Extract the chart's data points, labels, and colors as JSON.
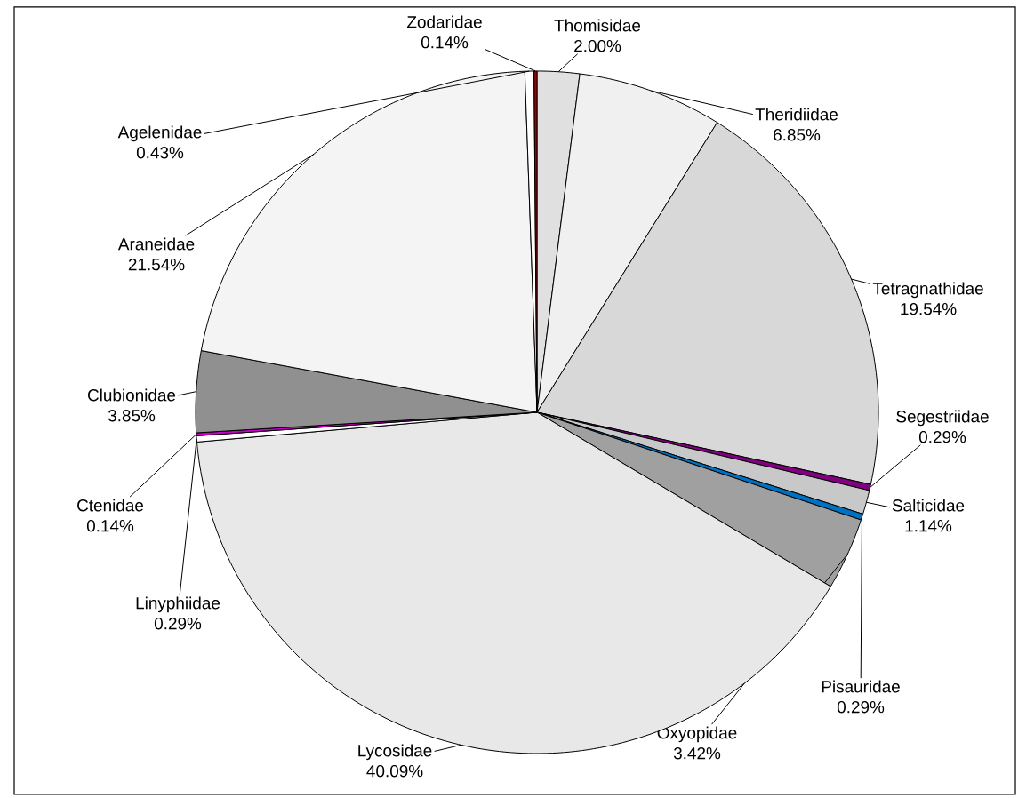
{
  "chart_data": {
    "type": "pie",
    "categories": [
      "Thomisidae",
      "Theridiidae",
      "Tetragnathidae",
      "Segestriidae",
      "Salticidae",
      "Pisauridae",
      "Oxyopidae",
      "Lycosidae",
      "Linyphiidae",
      "Ctenidae",
      "Clubionidae",
      "Araneidae",
      "Agelenidae",
      "Zodaridae"
    ],
    "values": [
      2.0,
      6.85,
      19.54,
      0.29,
      1.14,
      0.29,
      3.42,
      40.09,
      0.29,
      0.14,
      3.85,
      21.54,
      0.43,
      0.14
    ],
    "value_labels": [
      "2.00%",
      "6.85%",
      "19.54%",
      "0.29%",
      "1.14%",
      "0.29%",
      "3.42%",
      "40.09%",
      "0.29%",
      "0.14%",
      "3.85%",
      "21.54%",
      "0.43%",
      "0.14%"
    ],
    "colors": [
      "#e0e0e0",
      "#f0f0f0",
      "#d8d8d8",
      "#800080",
      "#c8c8c8",
      "#0070c0",
      "#a0a0a0",
      "#e8e8e8",
      "#ffffff",
      "#cc00cc",
      "#909090",
      "#f4f4f4",
      "#ffffff",
      "#990000"
    ]
  }
}
